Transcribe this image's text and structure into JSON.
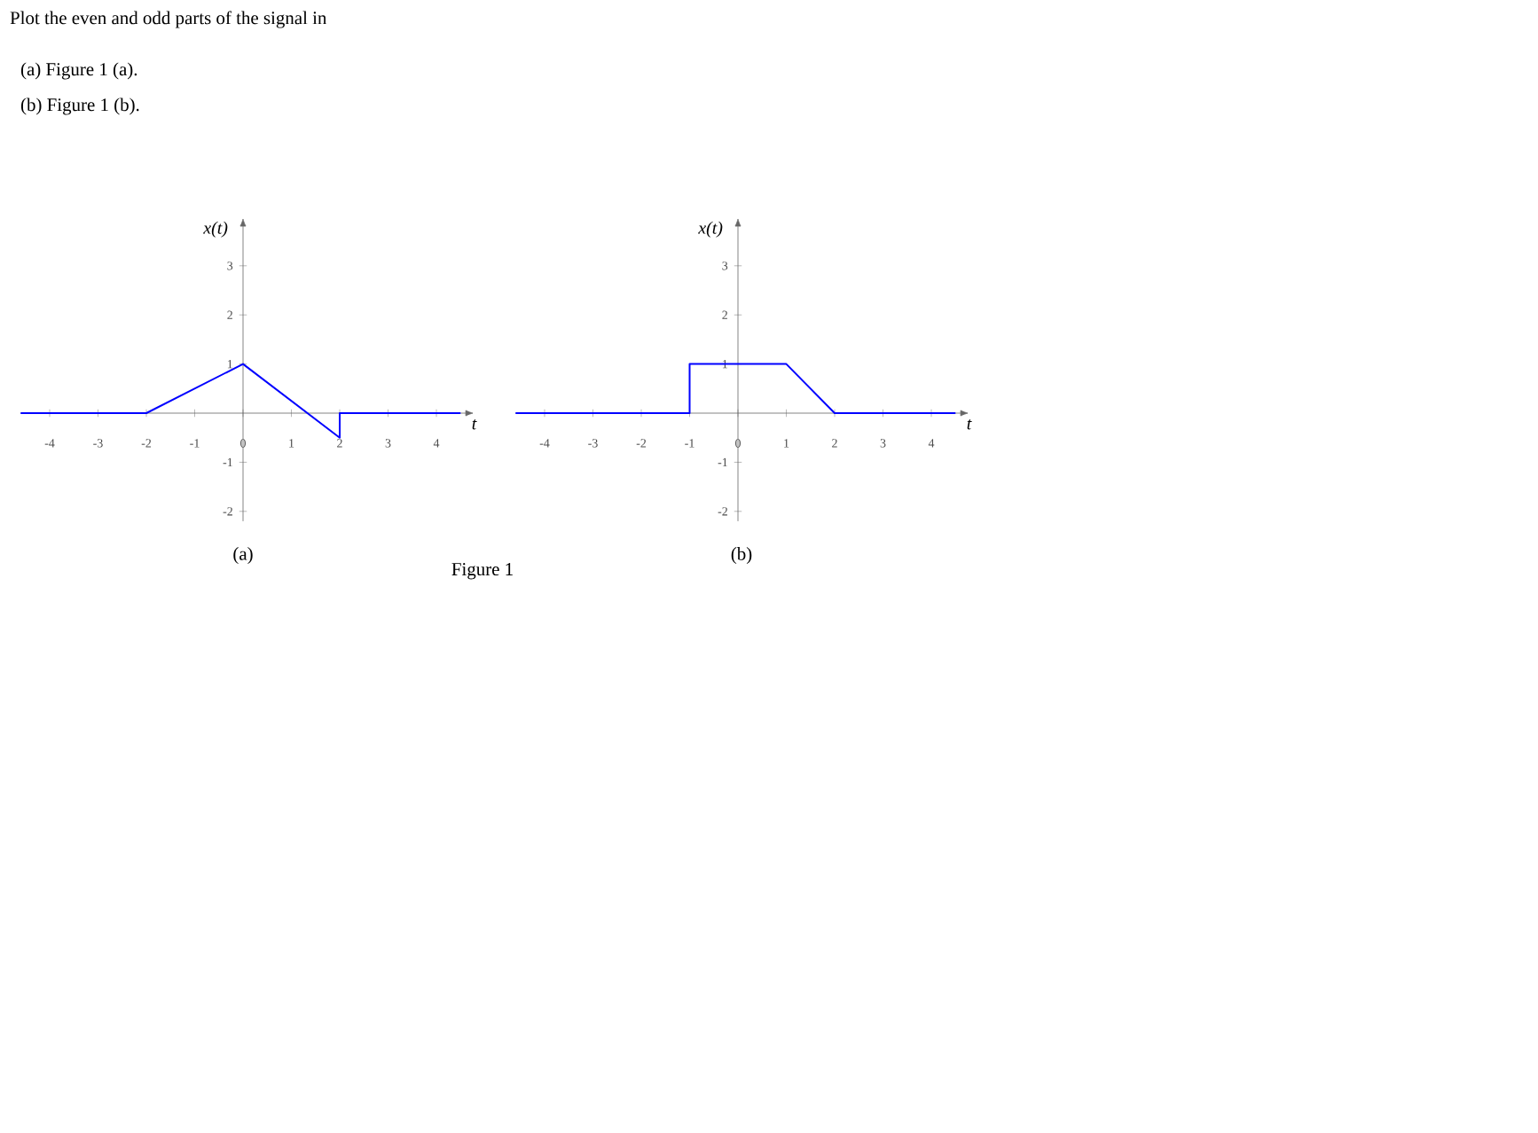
{
  "chart_data": [
    {
      "type": "line",
      "title": "Plot the even and odd parts of the signal in",
      "annotations": [
        "(a) Figure 1 (a).",
        "(b) Figure 1 (b).",
        "(a)",
        "Figure 1"
      ],
      "xlabel": "t",
      "ylabel": "x(t)",
      "color": "#0000ff",
      "x": [
        -4.6,
        -2,
        0,
        2,
        2,
        4.5
      ],
      "values": [
        0,
        0,
        1,
        -0.5,
        0,
        0
      ],
      "xlim": [
        -4.6,
        4.6
      ],
      "ylim": [
        -2.2,
        3.8
      ],
      "xticks": [
        -4,
        -3,
        -2,
        -1,
        0,
        1,
        2,
        3,
        4
      ],
      "yticks": [
        -2,
        -1,
        1,
        2,
        3
      ]
    },
    {
      "type": "line",
      "annotations": [
        "(b)"
      ],
      "xlabel": "t",
      "ylabel": "x(t)",
      "color": "#0000ff",
      "x": [
        -4.6,
        -1,
        -1,
        1,
        2,
        4.5
      ],
      "values": [
        0,
        0,
        1,
        1,
        0,
        0
      ],
      "xlim": [
        -4.6,
        4.6
      ],
      "ylim": [
        -2.2,
        3.8
      ],
      "xticks": [
        -4,
        -3,
        -2,
        -1,
        0,
        1,
        2,
        3,
        4
      ],
      "yticks": [
        -2,
        -1,
        1,
        2,
        3
      ]
    }
  ]
}
